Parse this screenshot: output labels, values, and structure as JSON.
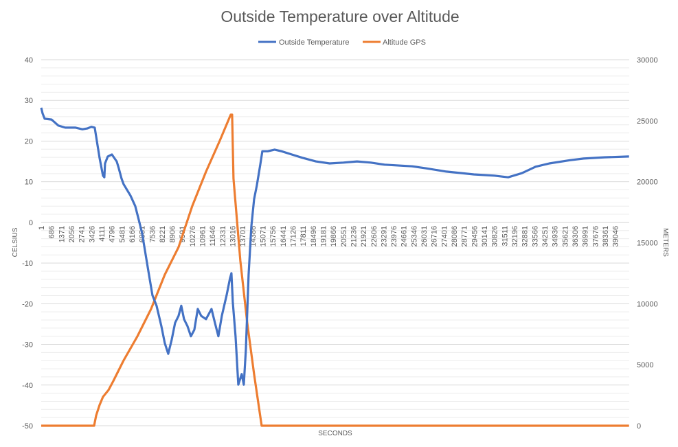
{
  "chart_data": {
    "type": "line",
    "title": "Outside Temperature over Altitude",
    "xlabel": "SECONDS",
    "ylabel": "CELSIUS",
    "y2label": "METERS",
    "xlim": [
      1,
      40000
    ],
    "ylim": [
      -50,
      40
    ],
    "y2lim": [
      0,
      30000
    ],
    "yticks": [
      "40",
      "30",
      "20",
      "10",
      "0",
      "-10",
      "-20",
      "-30",
      "-40",
      "-50"
    ],
    "y2ticks": [
      "30000",
      "25000",
      "20000",
      "15000",
      "10000",
      "5000",
      "0"
    ],
    "xticks": [
      "1",
      "686",
      "1371",
      "2056",
      "2741",
      "3426",
      "4111",
      "4796",
      "5481",
      "6166",
      "6851",
      "7536",
      "8221",
      "8906",
      "9591",
      "10276",
      "10961",
      "11646",
      "12331",
      "13016",
      "13701",
      "14386",
      "15071",
      "15756",
      "16441",
      "17126",
      "17811",
      "18496",
      "19181",
      "19866",
      "20551",
      "21236",
      "21921",
      "22606",
      "23291",
      "23976",
      "24661",
      "25346",
      "26031",
      "26716",
      "27401",
      "28086",
      "28771",
      "29456",
      "30141",
      "30826",
      "31511",
      "32196",
      "32881",
      "33566",
      "34251",
      "34936",
      "35621",
      "36306",
      "36991",
      "37676",
      "38361",
      "39046"
    ],
    "grid": true,
    "legend": "top",
    "series": [
      {
        "name": "Outside Temperature",
        "axis": "left",
        "color": "#4472C4",
        "points": [
          [
            1,
            28.2
          ],
          [
            93,
            26.8
          ],
          [
            234,
            25.5
          ],
          [
            701,
            25.3
          ],
          [
            1168,
            23.8
          ],
          [
            1635,
            23.3
          ],
          [
            2336,
            23.3
          ],
          [
            2803,
            22.9
          ],
          [
            3130,
            23.1
          ],
          [
            3410,
            23.5
          ],
          [
            3643,
            23.3
          ],
          [
            3970,
            15.9
          ],
          [
            4204,
            11.5
          ],
          [
            4297,
            11.1
          ],
          [
            4344,
            14.5
          ],
          [
            4531,
            16.2
          ],
          [
            4811,
            16.7
          ],
          [
            5138,
            15.0
          ],
          [
            5278,
            13.3
          ],
          [
            5465,
            10.8
          ],
          [
            5605,
            9.4
          ],
          [
            6072,
            6.6
          ],
          [
            6399,
            4.0
          ],
          [
            6633,
            0.7
          ],
          [
            6866,
            -2.7
          ],
          [
            7100,
            -7.8
          ],
          [
            7334,
            -12.9
          ],
          [
            7567,
            -17.9
          ],
          [
            7847,
            -20.5
          ],
          [
            8174,
            -25.5
          ],
          [
            8408,
            -29.7
          ],
          [
            8641,
            -32.3
          ],
          [
            8875,
            -28.9
          ],
          [
            9108,
            -24.7
          ],
          [
            9342,
            -23.0
          ],
          [
            9529,
            -20.5
          ],
          [
            9716,
            -23.8
          ],
          [
            9949,
            -25.5
          ],
          [
            10183,
            -28.0
          ],
          [
            10417,
            -26.4
          ],
          [
            10650,
            -21.3
          ],
          [
            10884,
            -23.0
          ],
          [
            11210,
            -23.8
          ],
          [
            11584,
            -21.3
          ],
          [
            11818,
            -24.7
          ],
          [
            12051,
            -28.0
          ],
          [
            12285,
            -23.0
          ],
          [
            12612,
            -17.9
          ],
          [
            12845,
            -13.7
          ],
          [
            12939,
            -12.5
          ],
          [
            13032,
            -19.6
          ],
          [
            13219,
            -28.0
          ],
          [
            13406,
            -39.9
          ],
          [
            13640,
            -37.3
          ],
          [
            13779,
            -39.9
          ],
          [
            13919,
            -31.4
          ],
          [
            14106,
            -12.9
          ],
          [
            14293,
            -1.0
          ],
          [
            14480,
            5.7
          ],
          [
            14667,
            9.1
          ],
          [
            14901,
            14.2
          ],
          [
            15041,
            17.5
          ],
          [
            15414,
            17.5
          ],
          [
            15881,
            17.9
          ],
          [
            16349,
            17.5
          ],
          [
            17049,
            16.7
          ],
          [
            17750,
            15.9
          ],
          [
            18684,
            15.0
          ],
          [
            19618,
            14.5
          ],
          [
            20552,
            14.7
          ],
          [
            21487,
            15.0
          ],
          [
            22421,
            14.7
          ],
          [
            23355,
            14.2
          ],
          [
            25223,
            13.8
          ],
          [
            26158,
            13.3
          ],
          [
            27559,
            12.5
          ],
          [
            29427,
            11.8
          ],
          [
            30829,
            11.5
          ],
          [
            31763,
            11.1
          ],
          [
            32697,
            12.1
          ],
          [
            33631,
            13.7
          ],
          [
            34565,
            14.5
          ],
          [
            35967,
            15.3
          ],
          [
            36901,
            15.7
          ],
          [
            38302,
            16.0
          ],
          [
            39984,
            16.2
          ]
        ]
      },
      {
        "name": "Altitude GPS",
        "axis": "right",
        "color": "#ED7D31",
        "points": [
          [
            1,
            0
          ],
          [
            3597,
            0
          ],
          [
            3737,
            844
          ],
          [
            3970,
            1690
          ],
          [
            4204,
            2364
          ],
          [
            4578,
            2927
          ],
          [
            4905,
            3658
          ],
          [
            5605,
            5347
          ],
          [
            6539,
            7316
          ],
          [
            7474,
            9568
          ],
          [
            8408,
            12382
          ],
          [
            9342,
            14633
          ],
          [
            10276,
            18010
          ],
          [
            11210,
            20824
          ],
          [
            12145,
            23357
          ],
          [
            12892,
            25496
          ],
          [
            12985,
            25496
          ],
          [
            13079,
            20261
          ],
          [
            13546,
            13508
          ],
          [
            14013,
            8442
          ],
          [
            14480,
            4221
          ],
          [
            14994,
            0
          ],
          [
            39984,
            0
          ]
        ]
      }
    ]
  }
}
